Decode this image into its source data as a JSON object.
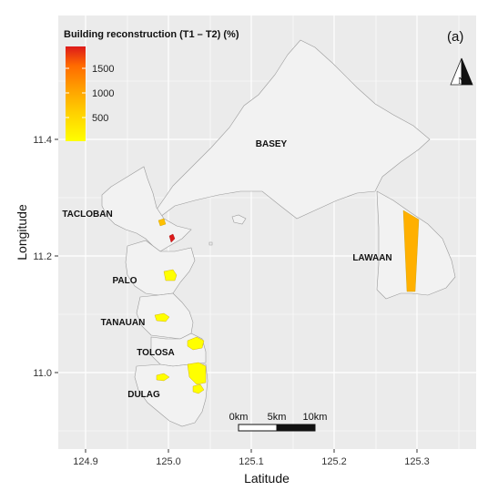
{
  "legend": {
    "title": "Building reconstruction (T1 – T2) (%)",
    "ticks": [
      "1500",
      "1000",
      "500"
    ],
    "colors": [
      "#ffff00",
      "#ffd000",
      "#ffa000",
      "#ff6a00",
      "#dd1a1a"
    ]
  },
  "panel_tag": "(a)",
  "north": {
    "letter": "N"
  },
  "axes": {
    "xlabel": "Latitude",
    "ylabel": "Longitude",
    "xticks": [
      "124.9",
      "125.0",
      "125.1",
      "125.2",
      "125.3"
    ],
    "yticks": [
      "11.4",
      "11.2",
      "11.0"
    ]
  },
  "regions": {
    "basey": "BASEY",
    "tacloban": "TACLOBAN",
    "lawaan": "LAWAAN",
    "palo": "PALO",
    "tanauan": "TANAUAN",
    "tolosa": "TOLOSA",
    "dulag": "DULAG"
  },
  "scale_bar": {
    "labels": [
      "0km",
      "5km",
      "10km"
    ]
  },
  "colors": {
    "panel_background": "#ebebeb",
    "land": "#f2f2f2",
    "gridline": "#ffffff",
    "low_change": "#ffff00",
    "mid_change": "#ffb000",
    "high_change": "#dd1a1a"
  }
}
